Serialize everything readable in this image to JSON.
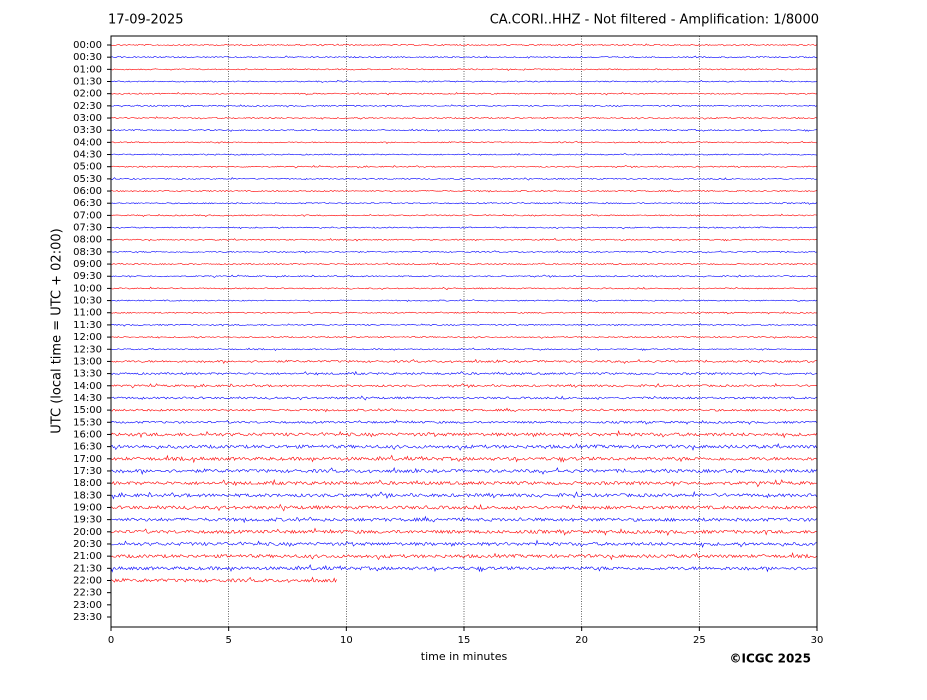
{
  "chart_data": {
    "type": "helicorder",
    "date": "17-09-2025",
    "title": "CA.CORI..HHZ - Not filtered - Amplification: 1/8000",
    "xlabel": "time in minutes",
    "ylabel": "UTC (local time = UTC + 02:00)",
    "copyright": "©ICGC 2025",
    "categories": [
      "00:00",
      "00:30",
      "01:00",
      "01:30",
      "02:00",
      "02:30",
      "03:00",
      "03:30",
      "04:00",
      "04:30",
      "05:00",
      "05:30",
      "06:00",
      "06:30",
      "07:00",
      "07:30",
      "08:00",
      "08:30",
      "09:00",
      "09:30",
      "10:00",
      "10:30",
      "11:00",
      "11:30",
      "12:00",
      "12:30",
      "13:00",
      "13:30",
      "14:00",
      "14:30",
      "15:00",
      "15:30",
      "16:00",
      "16:30",
      "17:00",
      "17:30",
      "18:00",
      "18:30",
      "19:00",
      "19:30",
      "20:00",
      "20:30",
      "21:00",
      "21:30",
      "22:00",
      "22:30",
      "23:00",
      "23:30"
    ],
    "values": [
      30,
      30,
      30,
      30,
      30,
      30,
      30,
      30,
      30,
      30,
      30,
      30,
      30,
      30,
      30,
      30,
      30,
      30,
      30,
      30,
      30,
      30,
      30,
      30,
      30,
      30,
      30,
      30,
      30,
      30,
      30,
      30,
      30,
      30,
      30,
      30,
      30,
      30,
      30,
      30,
      30,
      30,
      30,
      30,
      9.6,
      null,
      null,
      null
    ],
    "colors": [
      "#ff0000",
      "#0000ff"
    ],
    "xlim": [
      0,
      30
    ],
    "xticks": [
      0,
      5,
      10,
      15,
      20,
      25,
      30
    ],
    "grid": true
  }
}
